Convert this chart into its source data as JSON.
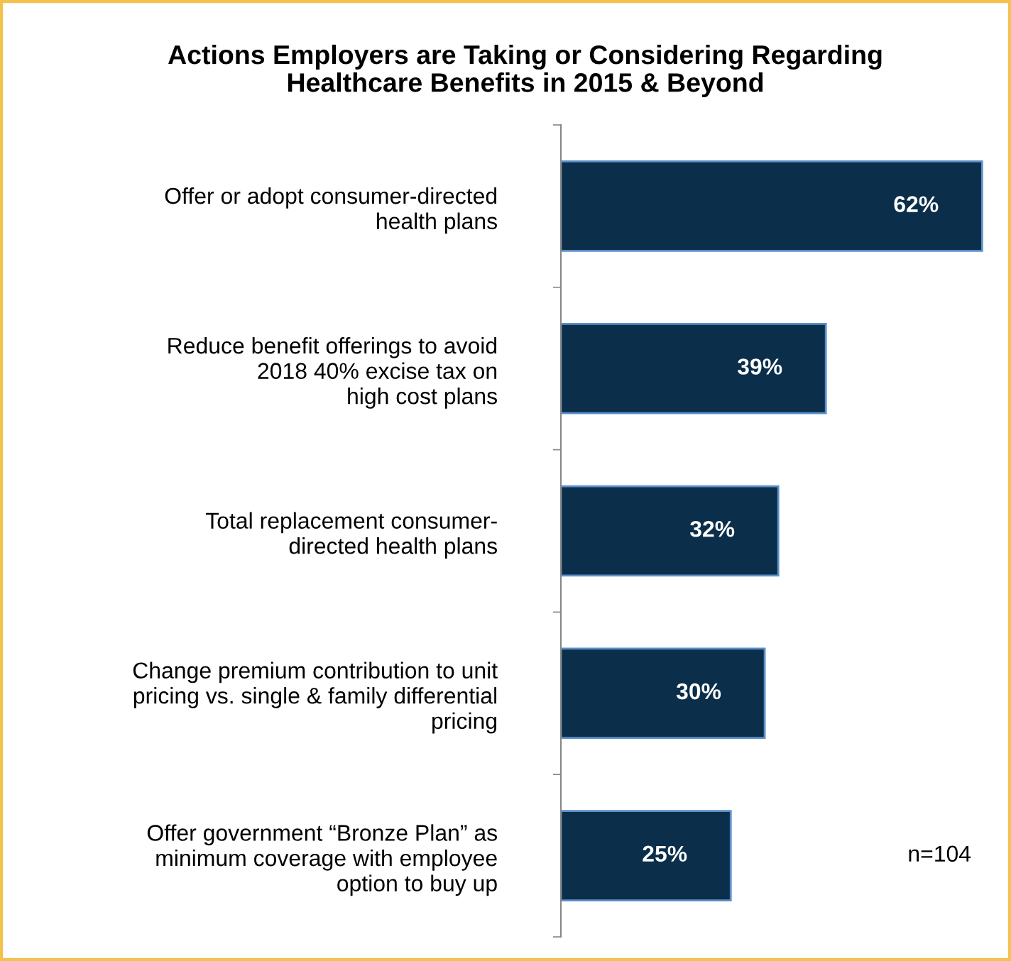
{
  "chart_data": {
    "type": "bar",
    "orientation": "horizontal",
    "title": "Actions Employers are Taking or Considering Regarding\nHealthcare Benefits in 2015 & Beyond",
    "categories": [
      "Offer or adopt consumer-directed\nhealth plans",
      "Reduce benefit offerings to avoid\n2018 40% excise tax on\nhigh cost plans",
      "Total replacement consumer-\ndirected health plans",
      "Change premium contribution to unit\npricing vs. single & family differential\npricing",
      "Offer government “Bronze Plan” as\nminimum coverage with employee\noption to buy up"
    ],
    "values": [
      62,
      39,
      32,
      30,
      25
    ],
    "value_labels": [
      "62%",
      "39%",
      "32%",
      "30%",
      "25%"
    ],
    "color": "#0b2e4a",
    "annotations": [
      "n=104"
    ],
    "grid": false,
    "legend": false,
    "tick_labels": "y"
  }
}
